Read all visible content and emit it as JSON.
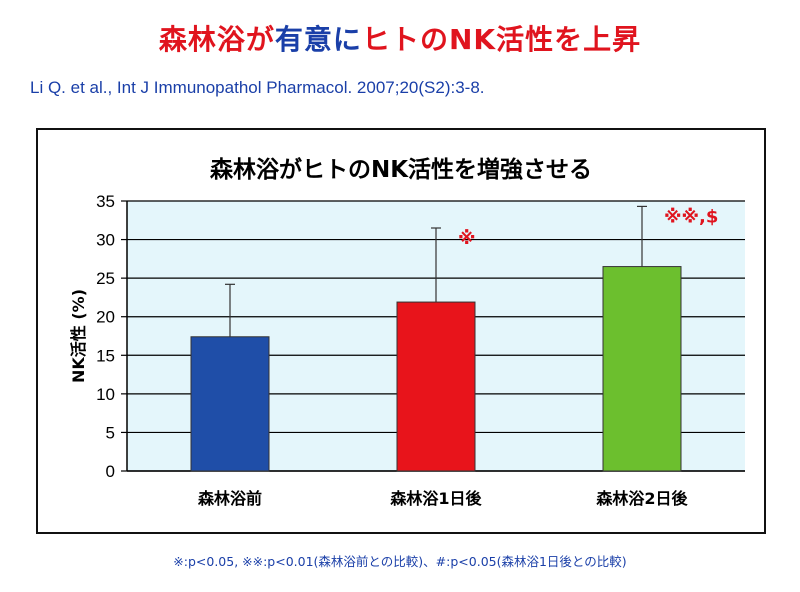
{
  "header": {
    "title_parts": [
      {
        "text": "森林浴が",
        "color": "#e0141e"
      },
      {
        "text": "有意に",
        "color": "#1a3fa8"
      },
      {
        "text": "ヒトのNK活性を上昇",
        "color": "#e0141e"
      }
    ],
    "citation": "Li Q. et al., Int J Immunopathol Pharmacol. 2007;20(S2):3-8."
  },
  "chart_data": {
    "type": "bar",
    "title": "森林浴がヒトのNK活性を増強させる",
    "categories": [
      "森林浴前",
      "森林浴1日後",
      "森林浴2日後"
    ],
    "values": [
      17.4,
      21.9,
      26.5
    ],
    "error_upper": [
      24.2,
      31.5,
      34.3
    ],
    "annotations": [
      "",
      "※",
      "※※,$"
    ],
    "colors": [
      "#1f4ea8",
      "#e8141b",
      "#6cbf2e"
    ],
    "ylabel": "NK活性 (%)",
    "ylim": [
      0,
      35
    ],
    "yticks": [
      0,
      5,
      10,
      15,
      20,
      25,
      30,
      35
    ],
    "grid": true,
    "plot_background": "#e4f6fb",
    "annotation_color": "#e0141e"
  },
  "footnote": "※:p<0.05, ※※:p<0.01(森林浴前との比較)、#:p<0.05(森林浴1日後との比較)"
}
